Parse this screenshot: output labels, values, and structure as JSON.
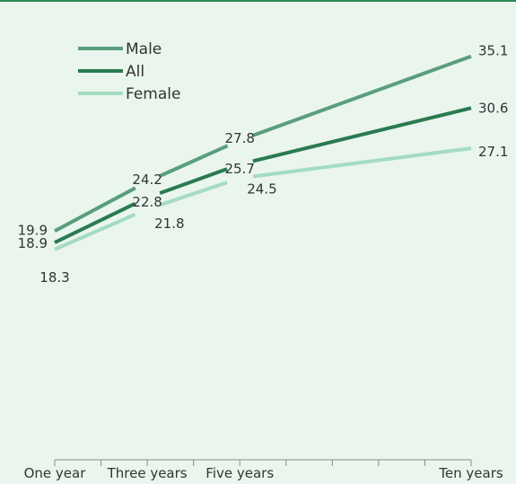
{
  "chart_data": {
    "type": "line",
    "categories": [
      "One year",
      "Three years",
      "Five years",
      "Ten years"
    ],
    "x": [
      1,
      3,
      5,
      10
    ],
    "xlim": [
      1,
      10
    ],
    "ylim": [
      0,
      40
    ],
    "grid": false,
    "legend_position": "top-left",
    "series": [
      {
        "name": "Male",
        "values": [
          19.9,
          24.2,
          27.8,
          35.1
        ],
        "labels": [
          "19.9",
          "24.2",
          "27.8",
          "35.1"
        ],
        "color": "#5a9e7c"
      },
      {
        "name": "All",
        "values": [
          18.9,
          22.8,
          25.7,
          30.6
        ],
        "labels": [
          "18.9",
          "22.8",
          "25.7",
          "30.6"
        ],
        "color": "#2a7a50"
      },
      {
        "name": "Female",
        "values": [
          18.3,
          21.8,
          24.5,
          27.1
        ],
        "labels": [
          "18.3",
          "21.8",
          "24.5",
          "27.1"
        ],
        "color": "#a4dcc0"
      }
    ]
  }
}
